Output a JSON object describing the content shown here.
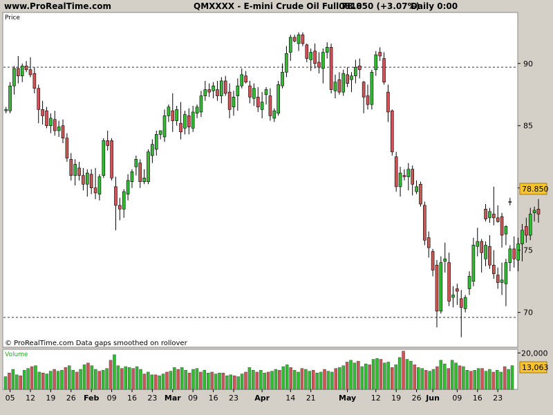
{
  "header": {
    "site": "www.ProRealTime.com",
    "symbol": "QMXXXX - E-mini Crude Oil Full0810",
    "last": "78.850 (+3.07%)",
    "period": "Daily  0:00"
  },
  "price_panel": {
    "label": "Price",
    "footer": "© ProRealTime.com  Data gaps smoothed on rollover"
  },
  "volume_panel": {
    "label": "Volume"
  },
  "colors": {
    "up": "#33bb33",
    "down": "#cc5555",
    "label_bg": "#f7c331",
    "volume_label": "#22aa22"
  },
  "chart_data": {
    "type": "candlestick",
    "price_axis": {
      "ticks": [
        70,
        75,
        80,
        85,
        90
      ],
      "ylim": [
        67.2,
        94.1
      ]
    },
    "volume_axis": {
      "ticks": [
        "20,000"
      ],
      "ylim": [
        0,
        22000
      ]
    },
    "last_price_label": "78.850",
    "last_volume_label": "13,063",
    "x_labels": [
      {
        "label": "05",
        "i": 1,
        "bold": false
      },
      {
        "label": "12",
        "i": 6,
        "bold": false
      },
      {
        "label": "19",
        "i": 11,
        "bold": false
      },
      {
        "label": "26",
        "i": 16,
        "bold": false
      },
      {
        "label": "Feb",
        "i": 21,
        "bold": true
      },
      {
        "label": "09",
        "i": 26,
        "bold": false
      },
      {
        "label": "16",
        "i": 31,
        "bold": false
      },
      {
        "label": "23",
        "i": 36,
        "bold": false
      },
      {
        "label": "Mar",
        "i": 41,
        "bold": true
      },
      {
        "label": "09",
        "i": 46,
        "bold": false
      },
      {
        "label": "16",
        "i": 51,
        "bold": false
      },
      {
        "label": "23",
        "i": 56,
        "bold": false
      },
      {
        "label": "Apr",
        "i": 63,
        "bold": true
      },
      {
        "label": "14",
        "i": 70,
        "bold": false
      },
      {
        "label": "21",
        "i": 75,
        "bold": false
      },
      {
        "label": "May",
        "i": 84,
        "bold": true
      },
      {
        "label": "12",
        "i": 91,
        "bold": false
      },
      {
        "label": "19",
        "i": 96,
        "bold": false
      },
      {
        "label": "26",
        "i": 101,
        "bold": false
      },
      {
        "label": "Jun",
        "i": 105,
        "bold": true
      },
      {
        "label": "09",
        "i": 111,
        "bold": false
      },
      {
        "label": "16",
        "i": 116,
        "bold": false
      },
      {
        "label": "23",
        "i": 121,
        "bold": false
      }
    ],
    "reference_lines": [
      89.7,
      69.6
    ],
    "candles": [
      [
        86.2,
        86.5,
        86.0,
        86.3
      ],
      [
        86.2,
        88.5,
        86.0,
        88.2
      ],
      [
        88.2,
        89.8,
        87.5,
        89.6
      ],
      [
        89.6,
        90.6,
        88.4,
        89.0
      ],
      [
        89.0,
        90.0,
        88.5,
        89.8
      ],
      [
        89.8,
        90.2,
        89.3,
        89.5
      ],
      [
        89.5,
        90.5,
        88.9,
        89.1
      ],
      [
        89.2,
        89.7,
        87.6,
        88.0
      ],
      [
        88.0,
        88.3,
        85.2,
        86.3
      ],
      [
        86.3,
        87.0,
        85.1,
        85.8
      ],
      [
        86.2,
        86.5,
        84.8,
        85.0
      ],
      [
        85.0,
        86.0,
        84.4,
        85.6
      ],
      [
        85.5,
        86.2,
        84.2,
        84.6
      ],
      [
        84.6,
        85.4,
        84.1,
        84.9
      ],
      [
        85.0,
        85.5,
        83.6,
        84.0
      ],
      [
        84.0,
        84.4,
        82.1,
        82.4
      ],
      [
        82.3,
        82.8,
        80.6,
        81.0
      ],
      [
        81.0,
        82.3,
        80.2,
        81.9
      ],
      [
        81.6,
        82.1,
        80.6,
        81.0
      ],
      [
        81.0,
        81.6,
        79.8,
        80.3
      ],
      [
        80.3,
        81.5,
        79.3,
        81.2
      ],
      [
        81.1,
        81.5,
        79.5,
        80.0
      ],
      [
        80.0,
        81.6,
        79.1,
        79.6
      ],
      [
        79.5,
        81.1,
        79.0,
        80.9
      ],
      [
        81.0,
        84.0,
        80.8,
        83.8
      ],
      [
        83.8,
        84.6,
        83.0,
        83.4
      ],
      [
        83.8,
        84.0,
        80.6,
        80.8
      ],
      [
        80.1,
        80.9,
        76.6,
        78.6
      ],
      [
        78.6,
        79.2,
        77.4,
        78.3
      ],
      [
        78.3,
        79.9,
        77.6,
        79.7
      ],
      [
        79.5,
        81.1,
        79.0,
        80.6
      ],
      [
        80.5,
        81.5,
        80.0,
        81.3
      ],
      [
        81.7,
        82.6,
        81.0,
        82.3
      ],
      [
        82.0,
        82.3,
        80.0,
        80.5
      ],
      [
        80.5,
        81.5,
        80.3,
        80.8
      ],
      [
        80.5,
        83.1,
        80.3,
        82.9
      ],
      [
        82.6,
        83.9,
        82.0,
        83.5
      ],
      [
        83.1,
        84.6,
        82.6,
        84.3
      ],
      [
        84.3,
        84.6,
        83.9,
        84.6
      ],
      [
        84.1,
        86.3,
        83.7,
        85.8
      ],
      [
        85.8,
        86.7,
        85.3,
        86.5
      ],
      [
        86.2,
        87.6,
        84.5,
        85.4
      ],
      [
        85.4,
        86.6,
        85.0,
        86.3
      ],
      [
        85.2,
        86.9,
        83.9,
        84.5
      ],
      [
        84.8,
        86.2,
        84.3,
        85.9
      ],
      [
        85.8,
        86.4,
        84.3,
        84.9
      ],
      [
        84.8,
        86.6,
        84.5,
        86.1
      ],
      [
        86.0,
        86.7,
        85.6,
        86.5
      ],
      [
        86.1,
        87.8,
        85.7,
        87.4
      ],
      [
        87.4,
        88.6,
        87.0,
        87.9
      ],
      [
        87.9,
        88.4,
        87.3,
        87.7
      ],
      [
        87.8,
        88.5,
        87.2,
        88.2
      ],
      [
        87.9,
        88.6,
        87.0,
        87.4
      ],
      [
        87.4,
        88.9,
        86.8,
        88.6
      ],
      [
        88.6,
        89.0,
        87.4,
        87.6
      ],
      [
        87.7,
        88.4,
        85.6,
        86.3
      ],
      [
        86.5,
        87.8,
        85.8,
        87.3
      ],
      [
        87.4,
        88.8,
        86.2,
        88.2
      ],
      [
        88.2,
        89.6,
        88.0,
        89.1
      ],
      [
        89.0,
        89.4,
        88.4,
        88.5
      ],
      [
        88.2,
        88.6,
        86.8,
        87.3
      ],
      [
        87.2,
        88.4,
        86.6,
        88.0
      ],
      [
        87.3,
        88.1,
        86.1,
        86.5
      ],
      [
        86.3,
        87.7,
        85.6,
        86.9
      ],
      [
        87.5,
        88.1,
        86.7,
        87.9
      ],
      [
        87.4,
        88.0,
        85.4,
        85.8
      ],
      [
        85.6,
        86.4,
        85.3,
        86.2
      ],
      [
        86.0,
        88.6,
        85.8,
        88.3
      ],
      [
        88.2,
        90.0,
        88.0,
        89.3
      ],
      [
        89.3,
        91.4,
        88.9,
        90.8
      ],
      [
        90.9,
        92.3,
        90.2,
        92.1
      ],
      [
        92.1,
        92.3,
        91.7,
        91.8
      ],
      [
        91.6,
        92.5,
        91.0,
        92.3
      ],
      [
        92.3,
        92.5,
        91.4,
        91.6
      ],
      [
        91.5,
        91.6,
        90.1,
        90.4
      ],
      [
        90.3,
        91.2,
        89.4,
        90.9
      ],
      [
        91.0,
        91.6,
        89.6,
        90.0
      ],
      [
        90.1,
        90.9,
        89.2,
        89.7
      ],
      [
        89.6,
        91.2,
        88.4,
        90.9
      ],
      [
        90.9,
        91.7,
        90.4,
        91.3
      ],
      [
        91.3,
        91.6,
        87.6,
        87.9
      ],
      [
        87.8,
        89.1,
        87.2,
        88.5
      ],
      [
        88.7,
        89.3,
        87.5,
        87.7
      ],
      [
        87.7,
        89.5,
        87.4,
        89.2
      ],
      [
        89.1,
        89.7,
        88.1,
        88.4
      ],
      [
        88.7,
        89.3,
        87.7,
        89.0
      ],
      [
        89.0,
        90.3,
        88.4,
        89.7
      ],
      [
        89.8,
        90.4,
        88.8,
        89.5
      ],
      [
        88.5,
        88.6,
        86.0,
        87.3
      ],
      [
        87.4,
        88.3,
        86.3,
        86.7
      ],
      [
        86.7,
        89.5,
        86.3,
        89.3
      ],
      [
        89.5,
        91.0,
        89.0,
        90.7
      ],
      [
        90.9,
        91.3,
        90.2,
        90.6
      ],
      [
        90.4,
        90.9,
        88.3,
        88.5
      ],
      [
        87.7,
        88.3,
        85.3,
        86.1
      ],
      [
        86.2,
        86.3,
        82.6,
        82.9
      ],
      [
        82.5,
        82.9,
        79.7,
        80.1
      ],
      [
        80.1,
        81.7,
        79.3,
        81.2
      ],
      [
        81.0,
        81.5,
        80.6,
        80.9
      ],
      [
        80.9,
        82.0,
        79.8,
        81.5
      ],
      [
        81.5,
        81.8,
        79.4,
        80.3
      ],
      [
        79.7,
        80.6,
        79.5,
        80.1
      ],
      [
        80.3,
        80.5,
        78.5,
        78.7
      ],
      [
        78.6,
        78.9,
        75.4,
        75.8
      ],
      [
        76.0,
        76.5,
        74.4,
        75.2
      ],
      [
        74.9,
        75.1,
        72.9,
        73.4
      ],
      [
        73.8,
        74.2,
        68.8,
        70.1
      ],
      [
        70.1,
        74.5,
        69.9,
        74.0
      ],
      [
        74.1,
        75.6,
        73.2,
        74.3
      ],
      [
        74.0,
        74.8,
        70.5,
        70.9
      ],
      [
        71.2,
        72.1,
        70.4,
        71.4
      ],
      [
        71.9,
        72.3,
        70.6,
        71.7
      ],
      [
        71.1,
        71.8,
        68.0,
        70.4
      ],
      [
        70.3,
        71.4,
        70.0,
        71.2
      ],
      [
        71.9,
        73.3,
        71.4,
        72.9
      ],
      [
        72.5,
        76.0,
        72.1,
        75.4
      ],
      [
        75.3,
        76.8,
        74.5,
        75.7
      ],
      [
        75.7,
        75.9,
        73.2,
        74.8
      ],
      [
        74.3,
        75.7,
        73.7,
        75.4
      ],
      [
        75.3,
        76.2,
        73.5,
        73.8
      ],
      [
        73.8,
        75.0,
        72.7,
        73.1
      ],
      [
        73.0,
        73.6,
        71.9,
        72.4
      ],
      [
        72.4,
        74.0,
        71.4,
        72.6
      ],
      [
        72.3,
        74.3,
        70.5,
        74.0
      ],
      [
        74.0,
        75.4,
        73.3,
        75.1
      ],
      [
        75.1,
        76.1,
        73.6,
        74.3
      ],
      [
        74.2,
        76.0,
        73.3,
        75.5
      ],
      [
        75.5,
        77.1,
        74.1,
        76.6
      ],
      [
        76.9,
        77.6,
        75.6,
        76.2
      ],
      [
        76.2,
        78.4,
        75.8,
        77.9
      ],
      [
        78.0,
        78.5,
        77.3,
        78.2
      ],
      [
        78.3,
        79.1,
        77.2,
        77.9
      ]
    ],
    "tail_candles": [
      {
        "i": 118,
        "o": 78.3,
        "h": 78.7,
        "l": 77.3,
        "c": 77.5
      },
      {
        "i": 119,
        "o": 77.6,
        "h": 78.4,
        "l": 77.2,
        "c": 78.1
      },
      {
        "i": 120,
        "o": 77.9,
        "h": 80.1,
        "l": 77.0,
        "c": 77.6
      },
      {
        "i": 121,
        "o": 77.6,
        "h": 78.6,
        "l": 77.2,
        "c": 77.3
      },
      {
        "i": 122,
        "o": 77.7,
        "h": 78.0,
        "l": 75.2,
        "c": 76.2
      },
      {
        "i": 123,
        "o": 76.3,
        "h": 77.0,
        "l": 75.4,
        "c": 76.9
      },
      {
        "i": 124,
        "o": 78.9,
        "h": 79.2,
        "l": 78.6,
        "c": 78.85
      }
    ],
    "volumes": [
      7000,
      9000,
      11000,
      8000,
      7500,
      10500,
      11500,
      12500,
      13000,
      9500,
      9000,
      8500,
      10000,
      11000,
      10000,
      10500,
      12000,
      13000,
      10500,
      9500,
      11000,
      13500,
      14500,
      13000,
      11000,
      10000,
      10500,
      11500,
      16000,
      19000,
      13000,
      11500,
      12500,
      12000,
      11500,
      12500,
      11000,
      8500,
      9500,
      8000,
      8000,
      7500,
      8500,
      9500,
      10000,
      12000,
      11000,
      12000,
      10500,
      9000,
      11000,
      11500,
      9500,
      10500,
      9000,
      9500,
      8500,
      9000,
      9000,
      7500,
      8000,
      7500,
      7000,
      8500,
      9500,
      12000,
      10500,
      9500,
      10500,
      9000,
      9500,
      10000,
      11000,
      10500,
      12500,
      13500,
      12000,
      10500,
      9500,
      11500,
      11000,
      10000,
      10500,
      9000,
      9500,
      11000,
      10000,
      9500,
      11500,
      12000,
      13000,
      15000,
      16000,
      14500,
      15500,
      12500,
      14000,
      13500,
      16500,
      17000,
      16500,
      14500,
      15000,
      12000,
      13500,
      17500,
      21000,
      16500,
      15500,
      13500,
      12000,
      11500,
      10500,
      10000,
      11000,
      12500,
      16000,
      14000,
      11500,
      16000,
      14500,
      13000,
      12500,
      10500,
      10000,
      10500,
      11500,
      11500,
      10000,
      11000,
      9500,
      10500,
      9500,
      12500,
      11000,
      13063
    ]
  }
}
